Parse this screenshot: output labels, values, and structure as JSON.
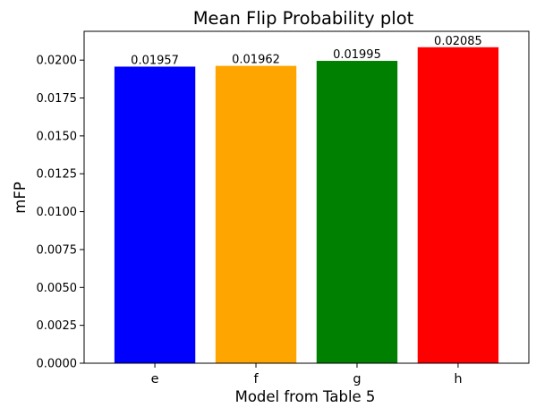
{
  "chart_data": {
    "type": "bar",
    "title": "Mean Flip Probability plot",
    "xlabel": "Model from Table 5",
    "ylabel": "mFP",
    "categories": [
      "e",
      "f",
      "g",
      "h"
    ],
    "values": [
      0.01957,
      0.01962,
      0.01995,
      0.02085
    ],
    "value_labels": [
      "0.01957",
      "0.01962",
      "0.01995",
      "0.02085"
    ],
    "colors": [
      "#0000ff",
      "#ffa500",
      "#008000",
      "#ff0000"
    ],
    "ylim": [
      0,
      0.0219
    ],
    "yticks": [
      0,
      0.0025,
      0.005,
      0.0075,
      0.01,
      0.0125,
      0.015,
      0.0175,
      0.02
    ],
    "ytick_labels": [
      "0.0000",
      "0.0025",
      "0.0050",
      "0.0075",
      "0.0100",
      "0.0125",
      "0.0150",
      "0.0175",
      "0.0200"
    ],
    "grid": false,
    "legend": false
  }
}
